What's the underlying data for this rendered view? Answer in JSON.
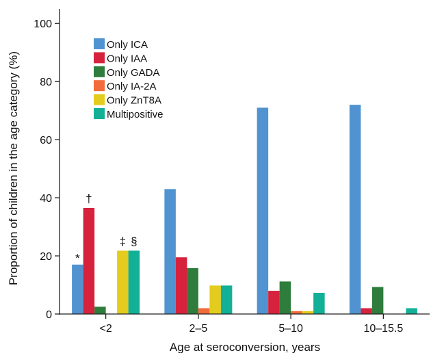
{
  "chart_data": {
    "type": "bar",
    "xlabel": "Age at seroconversion, years",
    "ylabel": "Proportion of children in the age category (%)",
    "ylim": [
      0,
      105
    ],
    "yticks": [
      0,
      20,
      40,
      60,
      80,
      100
    ],
    "grid": false,
    "legend_position": "top-left",
    "categories": [
      "<2",
      "2–5",
      "5–10",
      "10–15.5"
    ],
    "series": [
      {
        "name": "Only ICA",
        "color": "#5093d0",
        "values": [
          17,
          43,
          71,
          72
        ]
      },
      {
        "name": "Only IAA",
        "color": "#d6223c",
        "values": [
          36.5,
          19.5,
          8,
          2
        ]
      },
      {
        "name": "Only GADA",
        "color": "#2e7d3c",
        "values": [
          2.5,
          15.8,
          11.2,
          9.3
        ]
      },
      {
        "name": "Only IA-2A",
        "color": "#f26b3a",
        "values": [
          0,
          2,
          1,
          0
        ]
      },
      {
        "name": "Only ZnT8A",
        "color": "#e3cc1d",
        "values": [
          21.8,
          9.8,
          1,
          0
        ]
      },
      {
        "name": "Multipositive",
        "color": "#12b097",
        "values": [
          21.8,
          9.8,
          7.3,
          2
        ]
      }
    ],
    "annotations": [
      {
        "text": "*",
        "category": 0,
        "series": 0
      },
      {
        "text": "†",
        "category": 0,
        "series": 1
      },
      {
        "text": "‡",
        "category": 0,
        "series": 4
      },
      {
        "text": "§",
        "category": 0,
        "series": 5
      }
    ]
  }
}
